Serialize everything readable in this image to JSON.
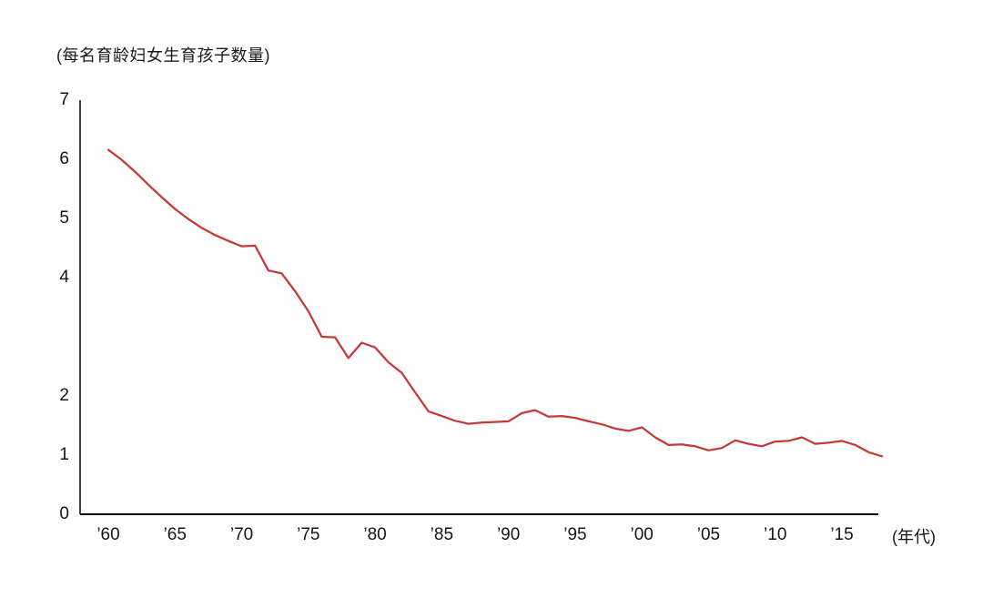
{
  "chart_data": {
    "type": "line",
    "title": "(每名育龄妇女生育孩子数量)",
    "x_axis_unit_label": "(年代)",
    "x_tick_labels": [
      "’60",
      "’65",
      "’70",
      "’75",
      "’80",
      "’85",
      "’90",
      "’95",
      "’00",
      "’05",
      "’10",
      "’15"
    ],
    "x_tick_years": [
      1960,
      1965,
      1970,
      1975,
      1980,
      1985,
      1990,
      1995,
      2000,
      2005,
      2010,
      2015
    ],
    "y_tick_values": [
      7,
      6,
      5,
      4,
      2,
      1,
      0
    ],
    "ylim": [
      0,
      7
    ],
    "xlim": [
      1960,
      2018
    ],
    "grid": "off",
    "legend": "none",
    "line_color": "#c23a3a",
    "axis_color": "#000000",
    "years": [
      1960,
      1961,
      1962,
      1963,
      1964,
      1965,
      1966,
      1967,
      1968,
      1969,
      1970,
      1971,
      1972,
      1973,
      1974,
      1975,
      1976,
      1977,
      1978,
      1979,
      1980,
      1981,
      1982,
      1983,
      1984,
      1985,
      1986,
      1987,
      1988,
      1989,
      1990,
      1991,
      1992,
      1993,
      1994,
      1995,
      1996,
      1997,
      1998,
      1999,
      2000,
      2001,
      2002,
      2003,
      2004,
      2005,
      2006,
      2007,
      2008,
      2009,
      2010,
      2011,
      2012,
      2013,
      2014,
      2015,
      2016,
      2017,
      2018
    ],
    "values": [
      6.16,
      5.99,
      5.79,
      5.57,
      5.36,
      5.16,
      4.99,
      4.84,
      4.72,
      4.62,
      4.53,
      4.54,
      4.12,
      4.07,
      3.77,
      3.43,
      3.0,
      2.99,
      2.64,
      2.9,
      2.82,
      2.57,
      2.39,
      2.06,
      1.74,
      1.66,
      1.58,
      1.53,
      1.55,
      1.56,
      1.57,
      1.71,
      1.76,
      1.65,
      1.66,
      1.63,
      1.57,
      1.52,
      1.45,
      1.41,
      1.47,
      1.3,
      1.17,
      1.18,
      1.15,
      1.08,
      1.12,
      1.25,
      1.19,
      1.15,
      1.23,
      1.24,
      1.3,
      1.19,
      1.21,
      1.24,
      1.17,
      1.05,
      0.98
    ]
  }
}
